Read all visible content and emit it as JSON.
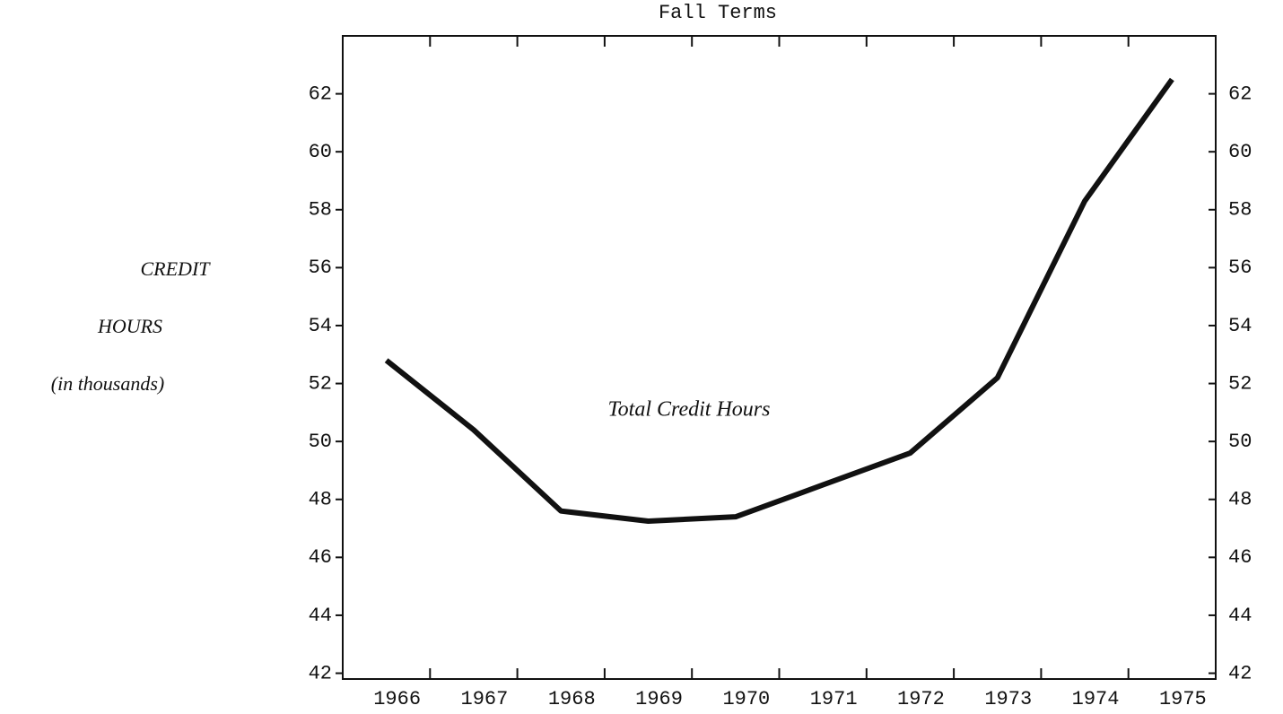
{
  "chart_data": {
    "type": "line",
    "title": "Fall Terms",
    "ylabel": [
      "CREDIT",
      "HOURS",
      "(in thousands)"
    ],
    "annotation": "Total Credit Hours",
    "categories": [
      "1966",
      "1967",
      "1968",
      "1969",
      "1970",
      "1971",
      "1972",
      "1973",
      "1974",
      "1975"
    ],
    "values": [
      52.8,
      50.4,
      47.6,
      47.25,
      47.4,
      48.5,
      49.6,
      52.2,
      58.3,
      62.5
    ],
    "color": "#111111",
    "ylim": [
      41.8,
      64
    ],
    "yticks": [
      42,
      44,
      46,
      48,
      50,
      52,
      54,
      56,
      58,
      60,
      62
    ],
    "y2lim": [
      41.8,
      64
    ],
    "y2ticks": [
      42,
      44,
      46,
      48,
      50,
      52,
      54,
      56,
      58,
      60,
      62
    ]
  }
}
